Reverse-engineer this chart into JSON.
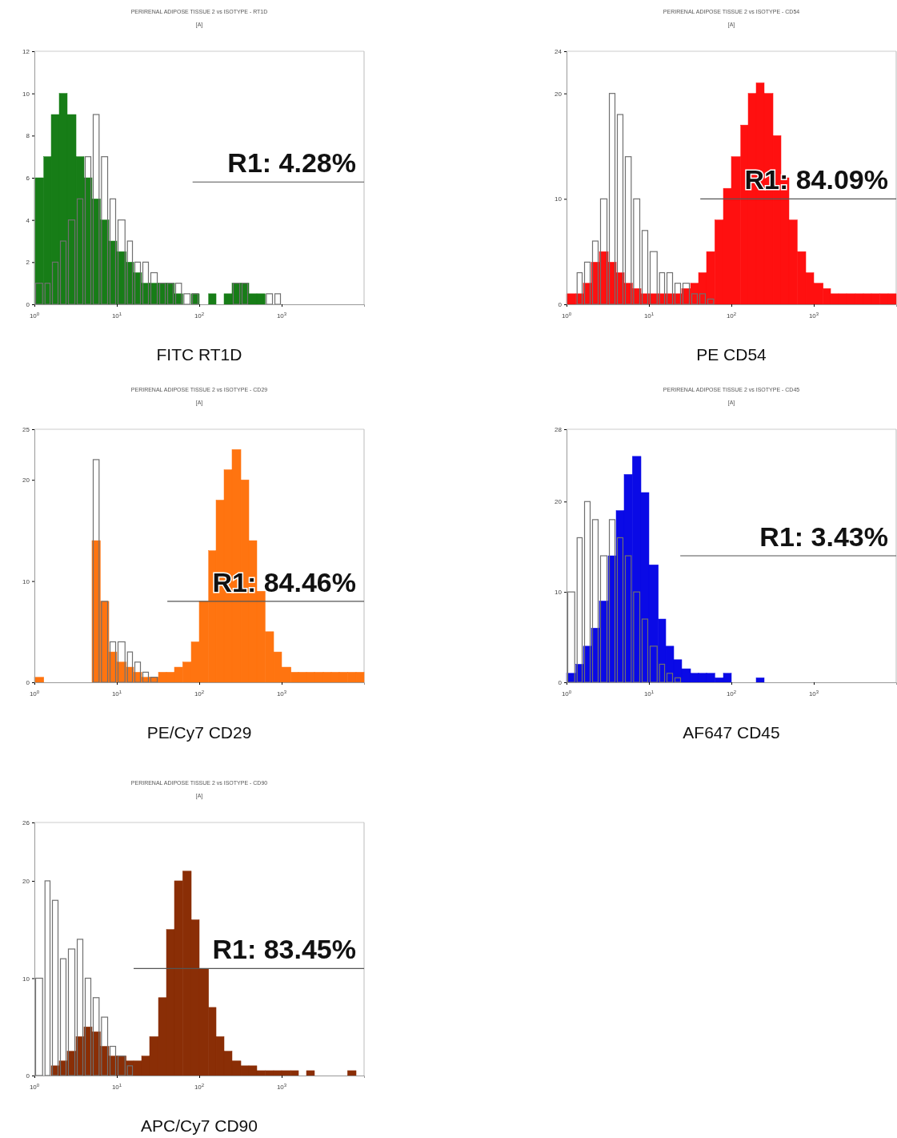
{
  "chart_data": [
    {
      "type": "histogram",
      "title": "PERIRENAL ADIPOSE TISSUE 2 vs ISOTYPE - RT1D",
      "subtitle": "[A]",
      "xlabel": "FITC RT1D",
      "log": "x",
      "xlim": [
        1,
        10000
      ],
      "ylim": [
        0,
        12
      ],
      "xticks": [
        {
          "value": 1,
          "label": "10$^{0}$"
        },
        {
          "value": 10,
          "label": "10$^{1}$"
        },
        {
          "value": 100,
          "label": "10$^{2}$"
        },
        {
          "value": 1000,
          "label": "10$^{3}$"
        }
      ],
      "yticks": [
        0,
        2,
        4,
        6,
        8,
        10,
        12
      ],
      "bins": [
        1,
        1.3,
        1.6,
        2,
        2.5,
        3.2,
        4,
        5,
        6.3,
        8,
        10,
        13,
        16,
        20,
        25,
        32,
        40,
        50,
        63,
        80,
        100,
        130,
        160,
        200,
        250,
        320,
        400,
        500,
        630,
        800,
        1000
      ],
      "series": [
        {
          "color": "#177d17",
          "values": [
            6,
            7,
            9,
            10,
            9,
            7,
            6,
            5,
            4,
            3,
            2.5,
            2,
            1.5,
            1,
            1,
            1,
            1,
            0.5,
            0,
            0.5,
            0,
            0.5,
            0,
            0.5,
            1,
            1,
            0.5,
            0.5,
            0,
            0
          ]
        },
        {
          "color": "#707070",
          "values": [
            1,
            1,
            2,
            3,
            4,
            5,
            7,
            9,
            7,
            5,
            4,
            3,
            2,
            2,
            1.5,
            1,
            1,
            1,
            0.5,
            0.5,
            0,
            0,
            0,
            0,
            1,
            1,
            0,
            0,
            0.5,
            0.5
          ]
        },
        {
          "type": "line",
          "color": "#555555",
          "x": [
            83,
            10000
          ],
          "values": [
            5.8,
            5.8
          ]
        }
      ],
      "annotations": [
        "R1: 4.28%"
      ]
    },
    {
      "type": "histogram",
      "title": "PERIRENAL ADIPOSE TISSUE 2 vs ISOTYPE - CD54",
      "subtitle": "[A]",
      "xlabel": "PE CD54",
      "log": "x",
      "xlim": [
        1,
        10000
      ],
      "ylim": [
        0,
        24
      ],
      "xticks": [
        {
          "value": 1,
          "label": "10$^{0}$"
        },
        {
          "value": 10,
          "label": "10$^{1}$"
        },
        {
          "value": 100,
          "label": "10$^{2}$"
        },
        {
          "value": 1000,
          "label": "10$^{3}$"
        }
      ],
      "yticks": [
        0,
        10,
        20,
        24
      ],
      "bins": [
        1,
        1.3,
        1.6,
        2,
        2.5,
        3.2,
        4,
        5,
        6.3,
        8,
        10,
        13,
        16,
        20,
        25,
        32,
        40,
        50,
        63,
        80,
        100,
        130,
        160,
        200,
        250,
        320,
        400,
        500,
        630,
        800,
        1000,
        1300,
        1600,
        2000,
        2500,
        3200,
        4000,
        5000,
        6300,
        8000,
        10000
      ],
      "series": [
        {
          "color": "#ff1010",
          "values": [
            1,
            1,
            2,
            4,
            5,
            4,
            3,
            2,
            1.5,
            1,
            1,
            1,
            1,
            1,
            1.5,
            2,
            3,
            5,
            8,
            11,
            14,
            17,
            20,
            21,
            20,
            16,
            12,
            8,
            5,
            3,
            2,
            1.5,
            1,
            1,
            1,
            1,
            1,
            1,
            1,
            1
          ]
        },
        {
          "color": "#707070",
          "values": [
            0,
            3,
            4,
            6,
            10,
            20,
            18,
            14,
            10,
            7,
            5,
            3,
            3,
            2,
            2,
            1,
            1,
            0.5,
            0,
            0,
            0,
            0,
            0,
            0,
            0,
            0,
            0,
            0,
            0,
            0,
            0,
            0,
            0,
            0,
            0,
            0,
            0,
            0,
            0,
            0
          ]
        },
        {
          "type": "line",
          "color": "#555555",
          "x": [
            42,
            10000
          ],
          "values": [
            10,
            10
          ]
        }
      ],
      "annotations": [
        "R1: 84.09%"
      ]
    },
    {
      "type": "histogram",
      "title": "PERIRENAL ADIPOSE TISSUE 2 vs ISOTYPE - CD29",
      "subtitle": "[A]",
      "xlabel": "PE/Cy7 CD29",
      "log": "x",
      "xlim": [
        1,
        10000
      ],
      "ylim": [
        0,
        25
      ],
      "xticks": [
        {
          "value": 1,
          "label": "10$^{0}$"
        },
        {
          "value": 10,
          "label": "10$^{1}$"
        },
        {
          "value": 100,
          "label": "10$^{2}$"
        },
        {
          "value": 1000,
          "label": "10$^{3}$"
        }
      ],
      "yticks": [
        0,
        10,
        20,
        25
      ],
      "bins": [
        1,
        1.3,
        5,
        6.3,
        8,
        10,
        13,
        16,
        20,
        25,
        32,
        40,
        50,
        63,
        80,
        100,
        130,
        160,
        200,
        250,
        320,
        400,
        500,
        630,
        800,
        1000,
        1300,
        1600,
        2000,
        2500,
        3200,
        4000,
        5000,
        6300,
        8000,
        10000
      ],
      "series": [
        {
          "color": "#ff7410",
          "values": [
            0.5,
            0,
            14,
            8,
            3,
            2,
            1.5,
            1,
            0.5,
            0.5,
            1,
            1,
            1.5,
            2,
            4,
            8,
            13,
            18,
            21,
            23,
            20,
            14,
            9,
            5,
            3,
            1.5,
            1,
            1,
            1,
            1,
            1,
            1,
            1,
            1,
            1
          ]
        },
        {
          "color": "#707070",
          "values": [
            0,
            0,
            22,
            8,
            4,
            4,
            3,
            2,
            1,
            0.5,
            0,
            0,
            0,
            0,
            0,
            0,
            0,
            0,
            0,
            0,
            0,
            0,
            0,
            0,
            0,
            0,
            0,
            0,
            0,
            0,
            0,
            0,
            0,
            0,
            0
          ]
        },
        {
          "type": "line",
          "color": "#555555",
          "x": [
            41,
            10000
          ],
          "values": [
            8,
            8
          ]
        }
      ],
      "annotations": [
        "R1: 84.46%"
      ]
    },
    {
      "type": "histogram",
      "title": "PERIRENAL ADIPOSE TISSUE 2 vs ISOTYPE - CD45",
      "subtitle": "[A]",
      "xlabel": "AF647 CD45",
      "log": "x",
      "xlim": [
        1,
        10000
      ],
      "ylim": [
        0,
        28
      ],
      "xticks": [
        {
          "value": 1,
          "label": "10$^{0}$"
        },
        {
          "value": 10,
          "label": "10$^{1}$"
        },
        {
          "value": 100,
          "label": "10$^{2}$"
        },
        {
          "value": 1000,
          "label": "10$^{3}$"
        }
      ],
      "yticks": [
        0,
        10,
        20,
        28
      ],
      "bins": [
        1,
        1.3,
        1.6,
        2,
        2.5,
        3.2,
        4,
        5,
        6.3,
        8,
        10,
        13,
        16,
        20,
        25,
        32,
        40,
        50,
        63,
        80,
        100,
        200,
        250
      ],
      "series": [
        {
          "color": "#0a0ae6",
          "values": [
            1,
            2,
            4,
            6,
            9,
            14,
            19,
            23,
            25,
            21,
            13,
            7,
            4,
            2.5,
            1.5,
            1,
            1,
            1,
            0.5,
            1,
            0,
            0.5
          ]
        },
        {
          "color": "#707070",
          "values": [
            10,
            16,
            20,
            18,
            14,
            18,
            16,
            14,
            10,
            7,
            4,
            2,
            1,
            0.5,
            0,
            0,
            0,
            0,
            0,
            0,
            0,
            0
          ]
        },
        {
          "type": "line",
          "color": "#555555",
          "x": [
            24,
            10000
          ],
          "values": [
            14,
            14
          ]
        }
      ],
      "annotations": [
        "R1: 3.43%"
      ]
    },
    {
      "type": "histogram",
      "title": "PERIRENAL ADIPOSE TISSUE 2 vs ISOTYPE - CD90",
      "subtitle": "[A]",
      "xlabel": "APC/Cy7 CD90",
      "log": "x",
      "xlim": [
        1,
        10000
      ],
      "ylim": [
        0,
        26
      ],
      "xticks": [
        {
          "value": 1,
          "label": "10$^{0}$"
        },
        {
          "value": 10,
          "label": "10$^{1}$"
        },
        {
          "value": 100,
          "label": "10$^{2}$"
        },
        {
          "value": 1000,
          "label": "10$^{3}$"
        }
      ],
      "yticks": [
        0,
        10,
        20,
        26
      ],
      "bins": [
        1,
        1.3,
        1.6,
        2,
        2.5,
        3.2,
        4,
        5,
        6.3,
        8,
        10,
        13,
        16,
        20,
        25,
        32,
        40,
        50,
        63,
        80,
        100,
        130,
        160,
        200,
        250,
        320,
        400,
        500,
        630,
        800,
        1000,
        1300,
        1600,
        2000,
        2500,
        6300,
        8000
      ],
      "series": [
        {
          "color": "#8a2e06",
          "values": [
            0,
            0,
            1,
            1.5,
            2.5,
            4,
            5,
            4.5,
            3,
            2,
            2,
            1.5,
            1.5,
            2,
            4,
            8,
            15,
            20,
            21,
            16,
            11,
            7,
            4,
            2.5,
            1.5,
            1,
            1,
            0.5,
            0.5,
            0.5,
            0.5,
            0.5,
            0,
            0.5,
            0,
            0.5
          ]
        },
        {
          "color": "#707070",
          "values": [
            10,
            20,
            18,
            12,
            13,
            14,
            10,
            8,
            6,
            3,
            2,
            1,
            0,
            0,
            0,
            0,
            0,
            0,
            0,
            0,
            0,
            0,
            0,
            0,
            0,
            0,
            0,
            0,
            0,
            0,
            0,
            0,
            0,
            0,
            0,
            0
          ]
        },
        {
          "type": "line",
          "color": "#555555",
          "x": [
            16,
            10000
          ],
          "values": [
            11,
            11
          ]
        }
      ],
      "annotations": [
        "R1: 83.45%"
      ]
    }
  ]
}
